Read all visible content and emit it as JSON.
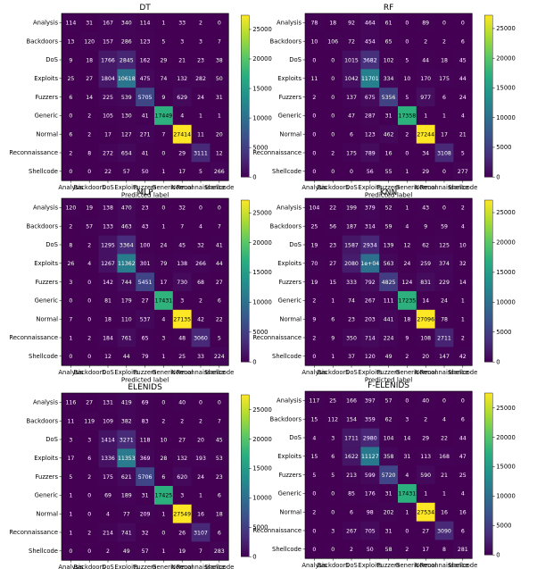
{
  "class_labels": [
    "Analysis",
    "Backdoors",
    "DoS",
    "Exploits",
    "Fuzzers",
    "Generic",
    "Normal",
    "Reconnaissance",
    "Shellcode"
  ],
  "colorbar_ticks": [
    0,
    5000,
    10000,
    15000,
    20000,
    25000
  ],
  "chart_data": [
    {
      "type": "heatmap",
      "title": "DT",
      "xlabel": "Predicted label",
      "ylabel": "",
      "vmax": 27414,
      "matrix": [
        [
          114,
          31,
          167,
          340,
          114,
          1,
          33,
          2,
          0
        ],
        [
          13,
          120,
          157,
          286,
          123,
          5,
          3,
          3,
          7
        ],
        [
          9,
          18,
          1766,
          2845,
          162,
          29,
          21,
          23,
          38
        ],
        [
          25,
          27,
          1804,
          10618,
          475,
          74,
          132,
          282,
          50
        ],
        [
          6,
          14,
          225,
          539,
          5705,
          9,
          629,
          24,
          31
        ],
        [
          0,
          2,
          105,
          130,
          41,
          17449,
          4,
          1,
          1
        ],
        [
          6,
          2,
          17,
          127,
          271,
          7,
          27414,
          11,
          20
        ],
        [
          2,
          8,
          272,
          654,
          41,
          0,
          29,
          3111,
          12
        ],
        [
          0,
          0,
          22,
          57,
          50,
          1,
          17,
          5,
          266
        ]
      ]
    },
    {
      "type": "heatmap",
      "title": "RF",
      "xlabel": "Predicted label",
      "ylabel": "",
      "vmax": 27244,
      "matrix": [
        [
          78,
          18,
          92,
          464,
          61,
          0,
          89,
          0,
          0
        ],
        [
          10,
          106,
          72,
          454,
          65,
          0,
          2,
          2,
          6
        ],
        [
          0,
          0,
          1015,
          3682,
          102,
          5,
          44,
          18,
          45
        ],
        [
          11,
          0,
          1042,
          11701,
          334,
          10,
          170,
          175,
          44
        ],
        [
          2,
          0,
          137,
          675,
          5356,
          5,
          977,
          6,
          24
        ],
        [
          0,
          0,
          47,
          287,
          31,
          17358,
          1,
          1,
          4
        ],
        [
          0,
          0,
          6,
          123,
          462,
          2,
          27244,
          17,
          21
        ],
        [
          0,
          2,
          175,
          789,
          16,
          0,
          34,
          3108,
          5
        ],
        [
          0,
          0,
          0,
          56,
          55,
          1,
          29,
          0,
          277
        ]
      ]
    },
    {
      "type": "heatmap",
      "title": "MLP",
      "xlabel": "Predicted label",
      "ylabel": "",
      "vmax": 27135,
      "matrix": [
        [
          120,
          19,
          138,
          470,
          23,
          0,
          32,
          0,
          0
        ],
        [
          2,
          57,
          133,
          463,
          43,
          1,
          7,
          4,
          7
        ],
        [
          8,
          2,
          1295,
          3364,
          100,
          24,
          45,
          32,
          41
        ],
        [
          26,
          4,
          1267,
          11362,
          301,
          79,
          138,
          266,
          44
        ],
        [
          3,
          0,
          142,
          744,
          5451,
          17,
          730,
          68,
          27
        ],
        [
          0,
          0,
          81,
          179,
          27,
          17431,
          3,
          2,
          6
        ],
        [
          7,
          0,
          18,
          110,
          537,
          4,
          27135,
          42,
          22
        ],
        [
          1,
          2,
          184,
          761,
          65,
          3,
          48,
          3060,
          5
        ],
        [
          0,
          0,
          12,
          44,
          79,
          1,
          25,
          33,
          224
        ]
      ]
    },
    {
      "type": "heatmap",
      "title": "KNN",
      "xlabel": "Predicted label",
      "ylabel": "",
      "vmax": 27096,
      "matrix": [
        [
          104,
          22,
          199,
          379,
          52,
          1,
          43,
          0,
          2
        ],
        [
          25,
          56,
          187,
          314,
          59,
          4,
          9,
          59,
          4
        ],
        [
          19,
          23,
          1587,
          2934,
          139,
          12,
          62,
          125,
          10
        ],
        [
          70,
          27,
          2080,
          "1e+04",
          563,
          24,
          259,
          374,
          32
        ],
        [
          19,
          15,
          333,
          792,
          4825,
          124,
          831,
          229,
          14
        ],
        [
          2,
          1,
          74,
          267,
          111,
          17235,
          14,
          24,
          1
        ],
        [
          9,
          6,
          23,
          203,
          441,
          18,
          27096,
          78,
          1
        ],
        [
          2,
          9,
          350,
          714,
          224,
          9,
          108,
          2711,
          2
        ],
        [
          0,
          1,
          37,
          120,
          49,
          2,
          20,
          147,
          42
        ]
      ]
    },
    {
      "type": "heatmap",
      "title": "ELENIDS",
      "xlabel": "Predicted label",
      "ylabel": "",
      "vmax": 27549,
      "matrix": [
        [
          116,
          27,
          131,
          419,
          69,
          0,
          40,
          0,
          0
        ],
        [
          11,
          119,
          109,
          382,
          83,
          2,
          2,
          2,
          7
        ],
        [
          3,
          3,
          1414,
          3271,
          118,
          10,
          27,
          20,
          45
        ],
        [
          17,
          6,
          1336,
          11353,
          369,
          28,
          132,
          193,
          53
        ],
        [
          5,
          2,
          175,
          621,
          5706,
          6,
          620,
          24,
          23
        ],
        [
          1,
          0,
          69,
          189,
          31,
          17425,
          3,
          1,
          6
        ],
        [
          1,
          0,
          4,
          77,
          209,
          1,
          27549,
          16,
          18
        ],
        [
          1,
          2,
          214,
          741,
          32,
          0,
          26,
          3107,
          6
        ],
        [
          0,
          0,
          2,
          49,
          57,
          1,
          19,
          7,
          283
        ]
      ]
    },
    {
      "type": "heatmap",
      "title": "F-ELENIDS",
      "xlabel": "Predicted label",
      "ylabel": "",
      "vmax": 27534,
      "matrix": [
        [
          117,
          25,
          166,
          397,
          57,
          0,
          40,
          0,
          0
        ],
        [
          15,
          112,
          154,
          359,
          62,
          3,
          2,
          4,
          6
        ],
        [
          4,
          3,
          1711,
          2980,
          104,
          14,
          29,
          22,
          44
        ],
        [
          15,
          6,
          1622,
          11127,
          358,
          31,
          113,
          168,
          47
        ],
        [
          5,
          5,
          213,
          599,
          5720,
          4,
          590,
          21,
          25
        ],
        [
          0,
          0,
          85,
          176,
          31,
          17431,
          1,
          1,
          4
        ],
        [
          2,
          0,
          6,
          98,
          202,
          1,
          27534,
          16,
          16
        ],
        [
          0,
          3,
          267,
          705,
          31,
          0,
          27,
          3090,
          6
        ],
        [
          0,
          0,
          2,
          50,
          58,
          2,
          17,
          8,
          281
        ]
      ]
    }
  ]
}
